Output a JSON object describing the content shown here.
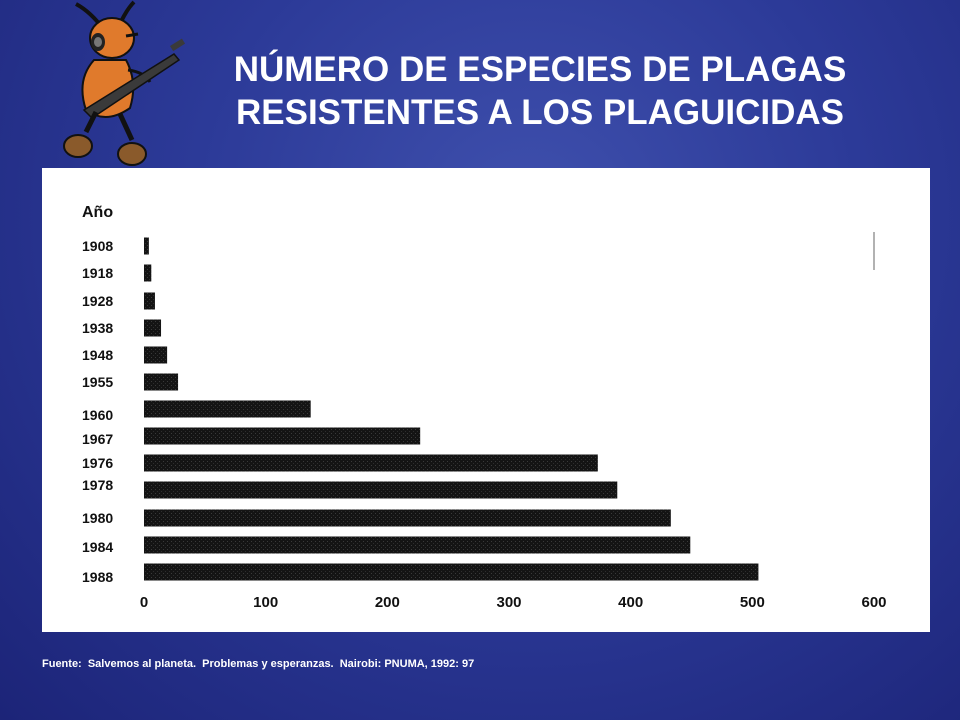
{
  "slide": {
    "title_line1": "NÚMERO DE ESPECIES DE PLAGAS",
    "title_line2": "RESISTENTES A LOS PLAGUICIDAS",
    "source": "Fuente:  Salvemos al planeta.  Problemas y esperanzas.  Nairobi: PNUMA, 1992: 97"
  },
  "chart_data": {
    "type": "bar",
    "orientation": "horizontal",
    "ylabel": "Año",
    "xlabel": "",
    "title": "",
    "categories": [
      "1908",
      "1918",
      "1928",
      "1938",
      "1948",
      "1955",
      "1960",
      "1967",
      "1976",
      "1978",
      "1980",
      "1984",
      "1988"
    ],
    "values": [
      4,
      6,
      9,
      14,
      19,
      28,
      137,
      227,
      373,
      389,
      433,
      449,
      505
    ],
    "xlim": [
      0,
      600
    ],
    "xticks": [
      0,
      100,
      200,
      300,
      400,
      500,
      600
    ],
    "grid": false,
    "bar_color": "#111111"
  },
  "colors": {
    "background": "#2c3a98",
    "panel": "#ffffff",
    "title_text": "#ffffff"
  }
}
